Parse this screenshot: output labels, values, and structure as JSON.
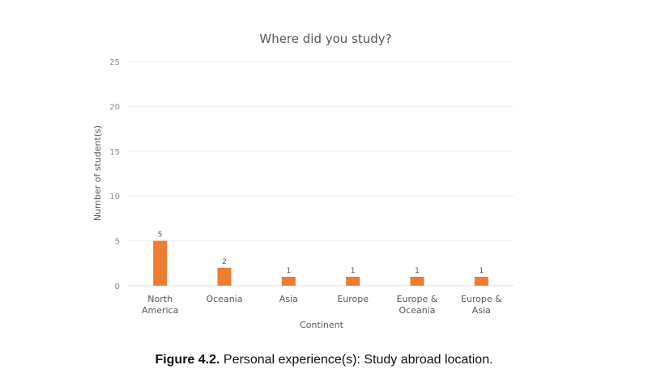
{
  "chart_data": {
    "type": "bar",
    "title": "Where did you study?",
    "xlabel": "Continent",
    "ylabel": "Number of student(s)",
    "categories": [
      [
        "North",
        "America"
      ],
      [
        "Oceania"
      ],
      [
        "Asia"
      ],
      [
        "Europe"
      ],
      [
        "Europe &",
        "Oceania"
      ],
      [
        "Europe &",
        "Asia"
      ]
    ],
    "values": [
      5,
      2,
      1,
      1,
      1,
      1
    ],
    "data_labels": [
      "5",
      "2",
      "1",
      "1",
      "1",
      "1"
    ],
    "ylim": [
      0,
      25
    ],
    "yticks": [
      "0",
      "5",
      "10",
      "15",
      "20",
      "25"
    ],
    "grid": true,
    "bar_color": "#ED7D31"
  },
  "caption": {
    "label": "Figure 4.2.",
    "text": " Personal experience(s): Study abroad location."
  }
}
